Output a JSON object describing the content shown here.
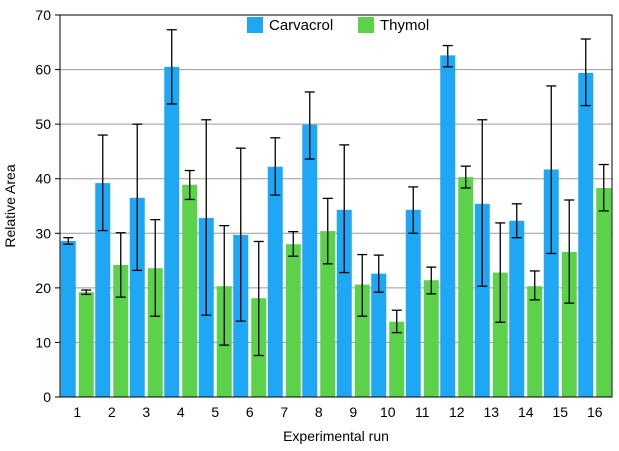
{
  "chart_data": {
    "type": "bar",
    "title": "",
    "xlabel": "Experimental run",
    "ylabel": "Relative Area",
    "ylim": [
      0,
      70
    ],
    "yticks": [
      0,
      10,
      20,
      30,
      40,
      50,
      60,
      70
    ],
    "grid": true,
    "legend": "top-center",
    "categories": [
      "1",
      "2",
      "3",
      "4",
      "5",
      "6",
      "7",
      "8",
      "9",
      "10",
      "11",
      "12",
      "13",
      "14",
      "15",
      "16"
    ],
    "series": [
      {
        "name": "Carvacrol",
        "color": "#1ea7f5",
        "values": [
          28.6,
          39.2,
          36.5,
          60.5,
          32.8,
          29.7,
          42.2,
          49.9,
          34.3,
          22.6,
          34.3,
          62.6,
          35.4,
          32.3,
          41.7,
          59.4
        ],
        "err_low": [
          28.0,
          30.5,
          23.2,
          53.7,
          15.0,
          13.9,
          37.0,
          43.6,
          22.8,
          19.2,
          30.0,
          60.5,
          20.3,
          29.2,
          26.3,
          53.4
        ],
        "err_high": [
          29.2,
          48.0,
          50.0,
          67.3,
          50.8,
          45.6,
          47.5,
          55.9,
          46.2,
          26.0,
          38.5,
          64.4,
          50.8,
          35.4,
          57.0,
          65.6
        ]
      },
      {
        "name": "Thymol",
        "color": "#5cd14a",
        "values": [
          19.2,
          24.2,
          23.6,
          38.9,
          20.3,
          18.1,
          28.0,
          30.4,
          20.6,
          13.8,
          21.4,
          40.3,
          22.8,
          20.3,
          26.6,
          38.3
        ],
        "err_low": [
          18.8,
          18.3,
          14.8,
          36.2,
          9.5,
          7.6,
          25.8,
          24.4,
          14.8,
          11.8,
          18.9,
          38.3,
          13.7,
          17.8,
          17.2,
          34.1
        ],
        "err_high": [
          19.6,
          30.1,
          32.5,
          41.5,
          31.4,
          28.5,
          30.3,
          36.4,
          26.1,
          15.9,
          23.8,
          42.3,
          31.9,
          23.1,
          36.1,
          42.6
        ]
      }
    ]
  }
}
